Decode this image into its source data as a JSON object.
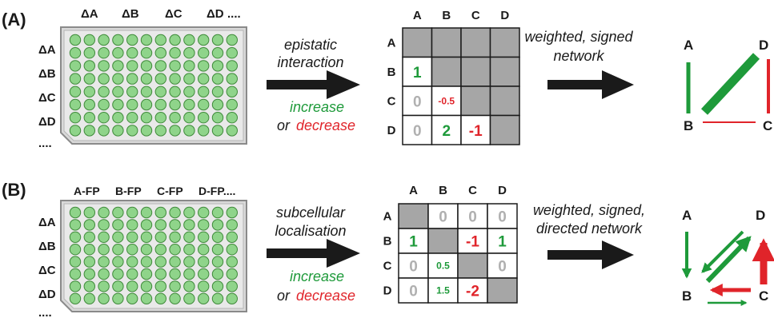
{
  "colors": {
    "green": "#1e9a3a",
    "red": "#e0242a",
    "well_fill": "#8fd48a",
    "well_stroke": "#3f8a3a",
    "plate_fill": "#d9d9d9",
    "grey_cell": "#a6a6a6",
    "zero_text": "#b0b0b0",
    "arrow": "#1a1a1a"
  },
  "panels": [
    {
      "label": "(A)",
      "plate": {
        "col_labels": [
          "ΔA",
          "ΔB",
          "ΔC",
          "ΔD",
          "...."
        ],
        "row_labels": [
          "ΔA",
          "ΔB",
          "ΔC",
          "ΔD",
          "...."
        ]
      },
      "arrow_text": [
        "epistatic",
        "interaction"
      ],
      "increase": "increase",
      "or": "or",
      "decrease": "decrease",
      "matrix": {
        "col_headers": [
          "A",
          "B",
          "C",
          "D"
        ],
        "row_headers": [
          "A",
          "B",
          "C",
          "D"
        ],
        "cells": [
          [
            {
              "type": "grey"
            },
            {
              "type": "grey"
            },
            {
              "type": "grey"
            },
            {
              "type": "grey"
            }
          ],
          [
            {
              "type": "value",
              "text": "1",
              "color": "green"
            },
            {
              "type": "grey"
            },
            {
              "type": "grey"
            },
            {
              "type": "grey"
            }
          ],
          [
            {
              "type": "value",
              "text": "0",
              "color": "zero"
            },
            {
              "type": "value",
              "text": "-0.5",
              "color": "red",
              "small": true
            },
            {
              "type": "grey"
            },
            {
              "type": "grey"
            }
          ],
          [
            {
              "type": "value",
              "text": "0",
              "color": "zero"
            },
            {
              "type": "value",
              "text": "2",
              "color": "green"
            },
            {
              "type": "value",
              "text": "-1",
              "color": "red"
            },
            {
              "type": "grey"
            }
          ]
        ]
      },
      "network_title": [
        "weighted, signed",
        "network"
      ],
      "nodes": [
        "A",
        "B",
        "C",
        "D"
      ]
    },
    {
      "label": "(B)",
      "plate": {
        "col_labels": [
          "A-FP",
          "B-FP",
          "C-FP",
          "D-FP...."
        ],
        "row_labels": [
          "ΔA",
          "ΔB",
          "ΔC",
          "ΔD",
          "...."
        ]
      },
      "arrow_text": [
        "subcellular",
        "localisation"
      ],
      "increase": "increase",
      "or": "or",
      "decrease": "decrease",
      "matrix": {
        "col_headers": [
          "A",
          "B",
          "C",
          "D"
        ],
        "row_headers": [
          "A",
          "B",
          "C",
          "D"
        ],
        "cells": [
          [
            {
              "type": "grey"
            },
            {
              "type": "value",
              "text": "0",
              "color": "zero"
            },
            {
              "type": "value",
              "text": "0",
              "color": "zero"
            },
            {
              "type": "value",
              "text": "0",
              "color": "zero"
            }
          ],
          [
            {
              "type": "value",
              "text": "1",
              "color": "green"
            },
            {
              "type": "grey"
            },
            {
              "type": "value",
              "text": "-1",
              "color": "red"
            },
            {
              "type": "value",
              "text": "1",
              "color": "green"
            }
          ],
          [
            {
              "type": "value",
              "text": "0",
              "color": "zero"
            },
            {
              "type": "value",
              "text": "0.5",
              "color": "green",
              "small": true
            },
            {
              "type": "grey"
            },
            {
              "type": "value",
              "text": "0",
              "color": "zero"
            }
          ],
          [
            {
              "type": "value",
              "text": "0",
              "color": "zero"
            },
            {
              "type": "value",
              "text": "1.5",
              "color": "green",
              "small": true
            },
            {
              "type": "value",
              "text": "-2",
              "color": "red"
            },
            {
              "type": "grey"
            }
          ]
        ]
      },
      "network_title": [
        "weighted, signed,",
        "directed network"
      ],
      "nodes": [
        "A",
        "B",
        "C",
        "D"
      ]
    }
  ]
}
